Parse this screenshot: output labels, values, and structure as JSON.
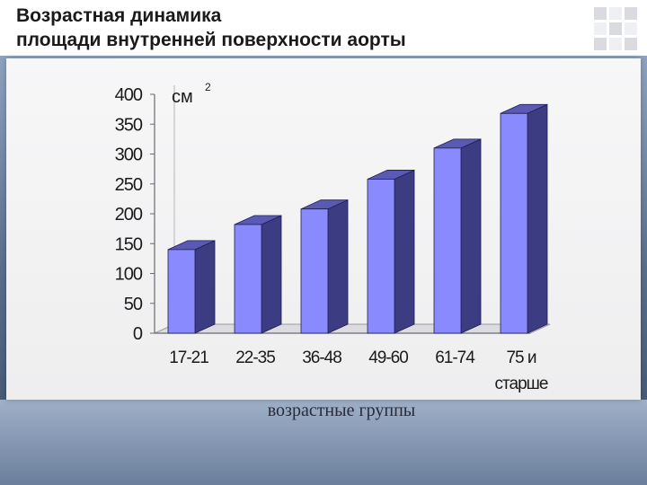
{
  "slide": {
    "title_line1": "Возрастная динамика",
    "title_line2": "площади внутренней поверхности аорты"
  },
  "chart_data": {
    "type": "bar",
    "title": "Возрастная динамика площади внутренней поверхности аорты",
    "categories": [
      "17-21",
      "22-35",
      "36-48",
      "49-60",
      "61-74",
      "75 и старше"
    ],
    "category_lines": [
      [
        "17-21"
      ],
      [
        "22-35"
      ],
      [
        "36-48"
      ],
      [
        "49-60"
      ],
      [
        "61-74"
      ],
      [
        "75 и",
        "старше"
      ]
    ],
    "values": [
      140,
      182,
      208,
      258,
      310,
      368
    ],
    "ylabel": "см",
    "ylabel_superscript": "2",
    "xlabel": "возрастные группы",
    "ylim": [
      0,
      400
    ],
    "yticks": [
      0,
      50,
      100,
      150,
      200,
      250,
      300,
      350,
      400
    ],
    "grid": false,
    "legend": "none",
    "colors": {
      "front": "#8a8aff",
      "side": "#3c3c82",
      "top": "#5a5ab4"
    }
  }
}
